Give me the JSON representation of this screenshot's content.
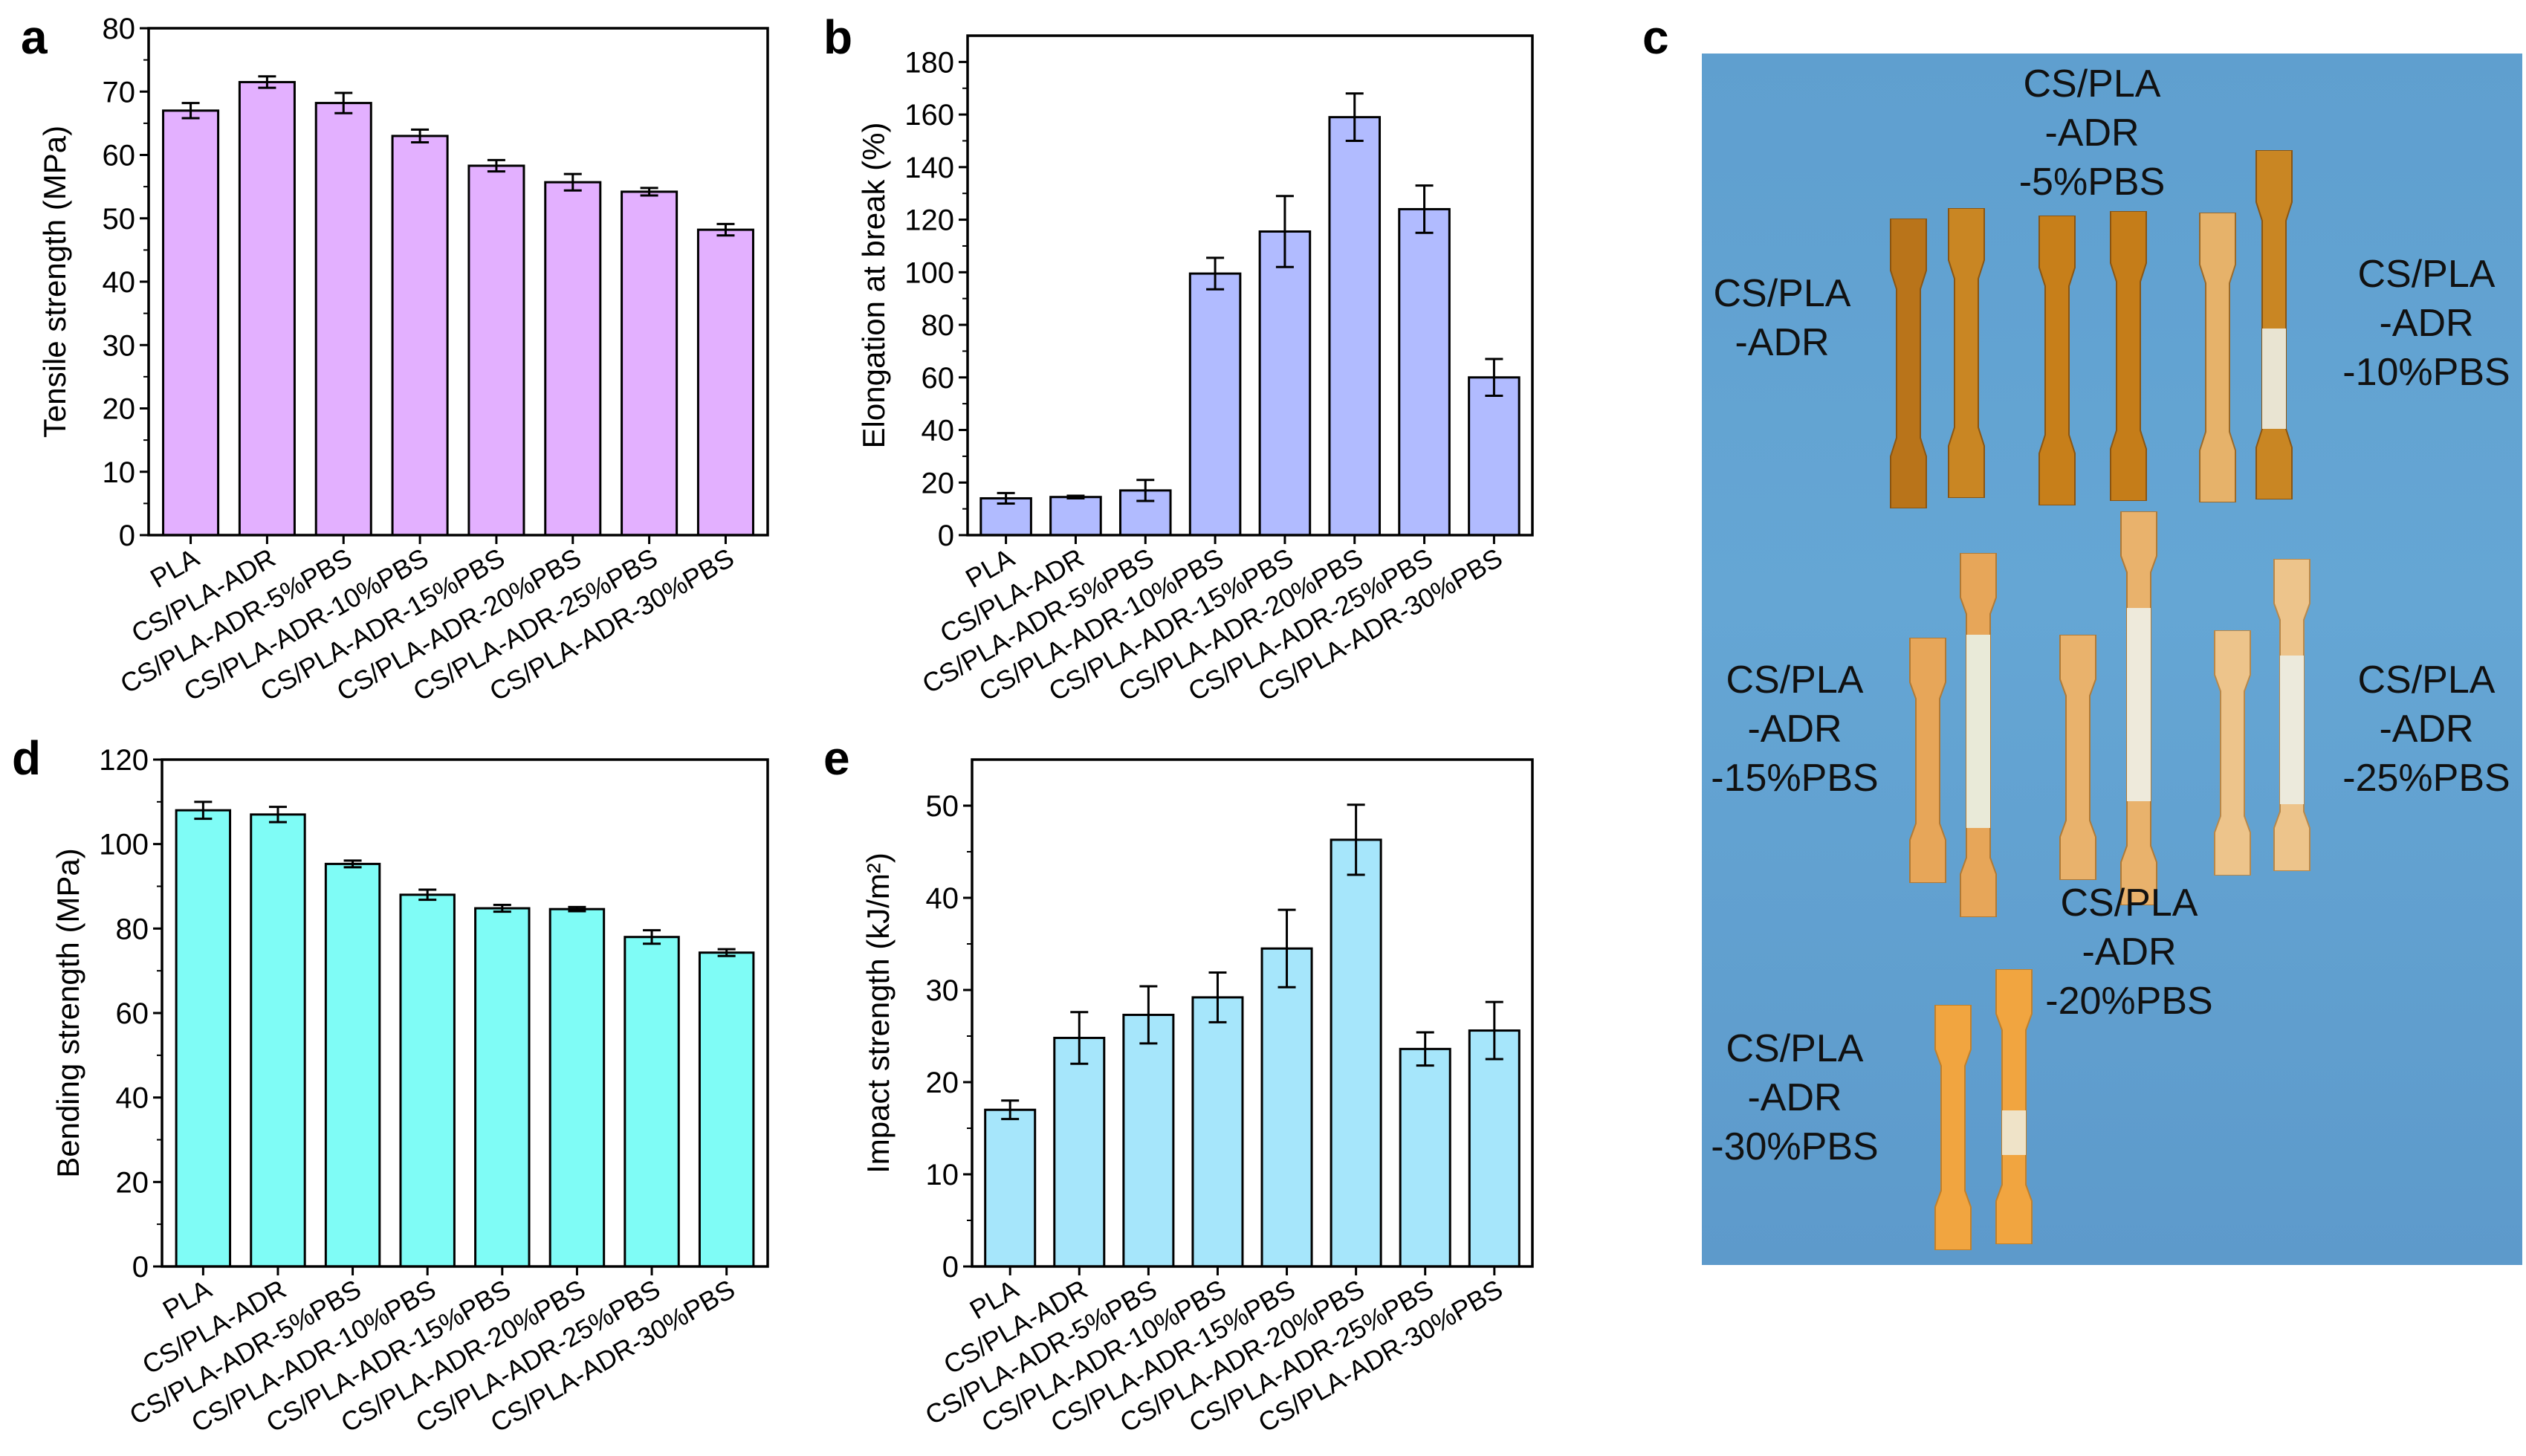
{
  "panels": {
    "a": "a",
    "b": "b",
    "c": "c",
    "d": "d",
    "e": "e"
  },
  "chart_data": [
    {
      "id": "a",
      "type": "bar",
      "title": "",
      "xlabel": "",
      "ylabel": "Tensile strength (MPa)",
      "ylim": [
        0,
        80
      ],
      "yticks": [
        0,
        10,
        20,
        30,
        40,
        50,
        60,
        70,
        80
      ],
      "categories": [
        "PLA",
        "CS/PLA-ADR",
        "CS/PLA-ADR-5%PBS",
        "CS/PLA-ADR-10%PBS",
        "CS/PLA-ADR-15%PBS",
        "CS/PLA-ADR-20%PBS",
        "CS/PLA-ADR-25%PBS",
        "CS/PLA-ADR-30%PBS"
      ],
      "values": [
        67.0,
        71.5,
        68.2,
        63.0,
        58.3,
        55.7,
        54.2,
        48.2
      ],
      "errors": [
        1.2,
        0.9,
        1.6,
        1.0,
        0.9,
        1.3,
        0.6,
        0.9
      ],
      "color": "#e3b0ff"
    },
    {
      "id": "b",
      "type": "bar",
      "title": "",
      "xlabel": "",
      "ylabel": "Elongation at break (%)",
      "ylim": [
        0,
        190
      ],
      "yticks": [
        0,
        20,
        40,
        60,
        80,
        100,
        120,
        140,
        160,
        180
      ],
      "categories": [
        "PLA",
        "CS/PLA-ADR",
        "CS/PLA-ADR-5%PBS",
        "CS/PLA-ADR-10%PBS",
        "CS/PLA-ADR-15%PBS",
        "CS/PLA-ADR-20%PBS",
        "CS/PLA-ADR-25%PBS",
        "CS/PLA-ADR-30%PBS"
      ],
      "values": [
        14,
        14.5,
        17,
        99.5,
        115.5,
        159,
        124,
        60
      ],
      "errors": [
        2,
        0.5,
        4,
        6,
        13.5,
        9,
        9,
        7
      ],
      "color": "#b1bbff"
    },
    {
      "id": "d",
      "type": "bar",
      "title": "",
      "xlabel": "",
      "ylabel": "Bending strength (MPa)",
      "ylim": [
        0,
        120
      ],
      "yticks": [
        0,
        20,
        40,
        60,
        80,
        100,
        120
      ],
      "categories": [
        "PLA",
        "CS/PLA-ADR",
        "CS/PLA-ADR-5%PBS",
        "CS/PLA-ADR-10%PBS",
        "CS/PLA-ADR-15%PBS",
        "CS/PLA-ADR-20%PBS",
        "CS/PLA-ADR-25%PBS",
        "CS/PLA-ADR-30%PBS"
      ],
      "values": [
        108,
        107,
        95.3,
        88,
        84.8,
        84.6,
        78,
        74.3
      ],
      "errors": [
        2.0,
        1.8,
        0.8,
        1.2,
        0.8,
        0.5,
        1.6,
        0.8
      ],
      "color": "#7ffcf6"
    },
    {
      "id": "e",
      "type": "bar",
      "title": "",
      "xlabel": "",
      "ylabel": "Impact strength (kJ/m²)",
      "ylim": [
        0,
        55
      ],
      "yticks": [
        0,
        10,
        20,
        30,
        40,
        50
      ],
      "categories": [
        "PLA",
        "CS/PLA-ADR",
        "CS/PLA-ADR-5%PBS",
        "CS/PLA-ADR-10%PBS",
        "CS/PLA-ADR-15%PBS",
        "CS/PLA-ADR-20%PBS",
        "CS/PLA-ADR-25%PBS",
        "CS/PLA-ADR-30%PBS"
      ],
      "values": [
        17,
        24.8,
        27.3,
        29.2,
        34.5,
        46.3,
        23.6,
        25.6
      ],
      "errors": [
        1.0,
        2.8,
        3.1,
        2.7,
        4.2,
        3.8,
        1.8,
        3.1
      ],
      "color": "#a6e6fb"
    }
  ],
  "photo": {
    "background": "#62a2d2",
    "labels": [
      [
        "CS/PLA",
        "-ADR"
      ],
      [
        "CS/PLA",
        "-ADR",
        "-5%PBS"
      ],
      [
        "CS/PLA",
        "-ADR",
        "-10%PBS"
      ],
      [
        "CS/PLA",
        "-ADR",
        "-15%PBS"
      ],
      [
        "CS/PLA",
        "-ADR",
        "-25%PBS"
      ],
      [
        "CS/PLA",
        "-ADR",
        "-20%PBS"
      ],
      [
        "CS/PLA",
        "-ADR",
        "-30%PBS"
      ]
    ]
  }
}
